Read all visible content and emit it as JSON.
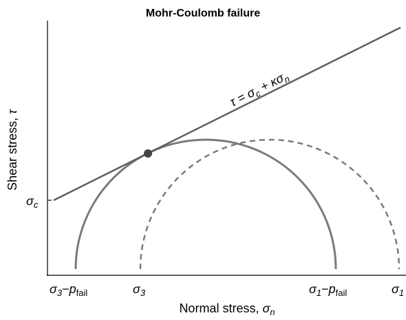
{
  "title": "Mohr-Coulomb failure",
  "y_axis_label": {
    "text": "Shear stress, ",
    "symbol": "τ"
  },
  "x_axis_label": {
    "text": "Normal stress, ",
    "symbol": "σ",
    "sub": "n"
  },
  "y_tick": {
    "symbol": "σ",
    "sub": "c"
  },
  "x_ticks": [
    {
      "symbol": "σ",
      "sub": "3",
      "minus": "−",
      "p": "p",
      "p_sub": "fail"
    },
    {
      "symbol": "σ",
      "sub": "3"
    },
    {
      "symbol": "σ",
      "sub": "1",
      "minus": "−",
      "p": "p",
      "p_sub": "fail"
    },
    {
      "symbol": "σ",
      "sub": "1"
    }
  ],
  "line_label": {
    "a": "τ = σ",
    "a_sub": "c",
    "b": " + κσ",
    "b_sub": "n"
  }
}
